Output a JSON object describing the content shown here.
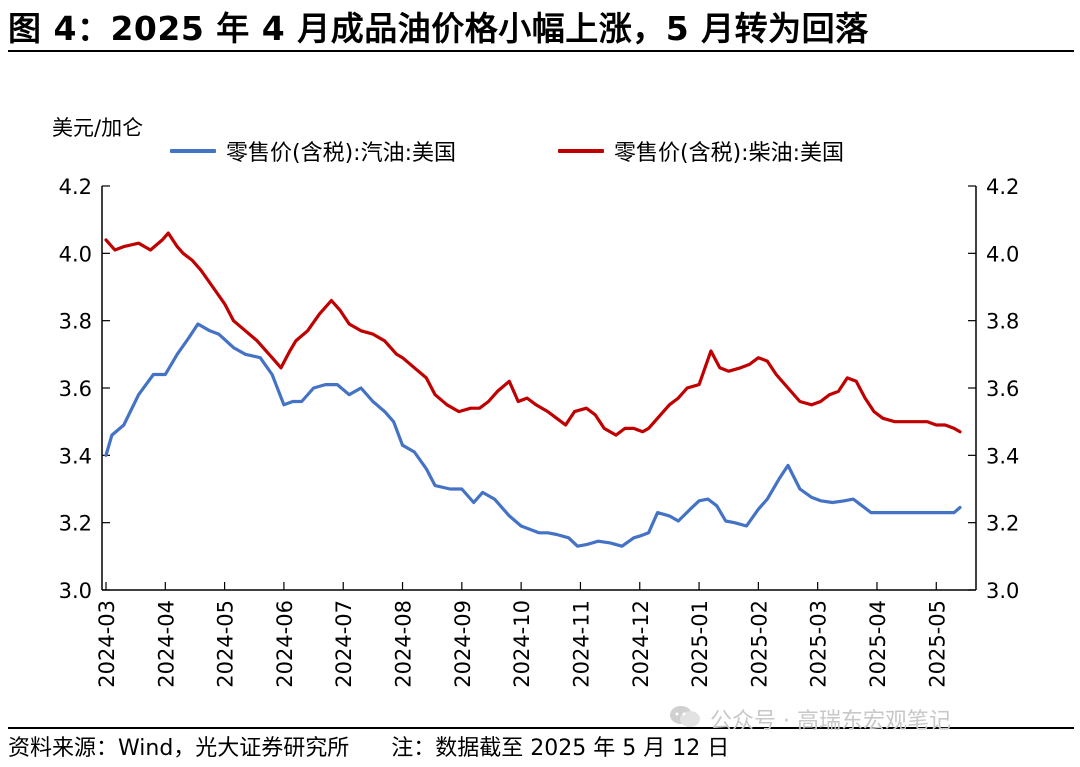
{
  "title": "图 4：2025 年 4 月成品油价格小幅上涨，5 月转为回落",
  "source": "资料来源：Wind，光大证券研究所      注：数据截至 2025 年 5 月 12 日",
  "watermark": "公众号 · 高瑞东宏观笔记",
  "watermark_icon": "wechat-icon",
  "chart_data": {
    "type": "line",
    "ylabel": "美元/加仑",
    "ylim": [
      3.0,
      4.2
    ],
    "yticks": [
      "3.0",
      "3.2",
      "3.4",
      "3.6",
      "3.8",
      "4.0",
      "4.2"
    ],
    "yticks_right": [
      "3.0",
      "3.2",
      "3.4",
      "3.6",
      "3.8",
      "4.0",
      "4.2"
    ],
    "x_labels": [
      "2024-03",
      "2024-04",
      "2024-05",
      "2024-06",
      "2024-07",
      "2024-08",
      "2024-09",
      "2024-10",
      "2024-11",
      "2024-12",
      "2025-01",
      "2025-02",
      "2025-03",
      "2025-04",
      "2025-05"
    ],
    "grid": false,
    "legend_position": "top",
    "series": [
      {
        "name": "零售价(含税):汽油:美国",
        "color": "#4472C4",
        "x": [
          0,
          0.1,
          0.3,
          0.55,
          0.8,
          1.0,
          1.2,
          1.4,
          1.55,
          1.75,
          1.9,
          2.15,
          2.35,
          2.6,
          2.8,
          3.0,
          3.15,
          3.3,
          3.5,
          3.7,
          3.9,
          4.1,
          4.3,
          4.5,
          4.7,
          4.85,
          5.0,
          5.2,
          5.4,
          5.55,
          5.8,
          6.0,
          6.2,
          6.35,
          6.55,
          6.8,
          7.0,
          7.15,
          7.3,
          7.45,
          7.6,
          7.8,
          7.95,
          8.1,
          8.3,
          8.5,
          8.7,
          8.9,
          9.0,
          9.15,
          9.3,
          9.5,
          9.65,
          9.85,
          10.0,
          10.15,
          10.3,
          10.45,
          10.6,
          10.8,
          11.0,
          11.15,
          11.35,
          11.5,
          11.7,
          11.9,
          12.05,
          12.25,
          12.45,
          12.6,
          12.75,
          12.9,
          13.0,
          13.1,
          13.2,
          13.3,
          13.45,
          13.6,
          13.75,
          13.85,
          14.0,
          14.15,
          14.3,
          14.4
        ],
        "values": [
          3.4,
          3.46,
          3.49,
          3.58,
          3.64,
          3.64,
          3.7,
          3.75,
          3.79,
          3.77,
          3.76,
          3.72,
          3.7,
          3.69,
          3.64,
          3.55,
          3.56,
          3.56,
          3.6,
          3.61,
          3.61,
          3.58,
          3.6,
          3.56,
          3.53,
          3.5,
          3.43,
          3.41,
          3.36,
          3.31,
          3.3,
          3.3,
          3.26,
          3.29,
          3.27,
          3.22,
          3.19,
          3.18,
          3.17,
          3.17,
          3.165,
          3.155,
          3.13,
          3.135,
          3.145,
          3.14,
          3.13,
          3.155,
          3.16,
          3.17,
          3.23,
          3.22,
          3.205,
          3.24,
          3.265,
          3.27,
          3.25,
          3.205,
          3.2,
          3.19,
          3.24,
          3.27,
          3.33,
          3.37,
          3.3,
          3.275,
          3.265,
          3.26,
          3.265,
          3.27,
          3.25,
          3.23,
          3.23,
          3.23,
          3.23,
          3.23,
          3.23,
          3.23,
          3.23,
          3.23,
          3.23,
          3.23,
          3.23,
          3.245
        ]
      },
      {
        "name": "零售价(含税):柴油:美国",
        "color": "#C00000",
        "x": [
          0,
          0.15,
          0.3,
          0.55,
          0.75,
          0.95,
          1.05,
          1.2,
          1.3,
          1.45,
          1.6,
          1.8,
          2.0,
          2.15,
          2.35,
          2.55,
          2.8,
          2.95,
          3.1,
          3.2,
          3.4,
          3.6,
          3.8,
          3.95,
          4.1,
          4.3,
          4.5,
          4.7,
          4.9,
          5.0,
          5.2,
          5.4,
          5.55,
          5.75,
          5.95,
          6.15,
          6.3,
          6.45,
          6.6,
          6.8,
          6.95,
          7.1,
          7.25,
          7.45,
          7.6,
          7.75,
          7.9,
          8.1,
          8.25,
          8.4,
          8.6,
          8.75,
          8.9,
          9.05,
          9.15,
          9.3,
          9.5,
          9.65,
          9.8,
          10.0,
          10.2,
          10.35,
          10.5,
          10.7,
          10.85,
          11.0,
          11.15,
          11.3,
          11.5,
          11.7,
          11.9,
          12.05,
          12.2,
          12.35,
          12.5,
          12.65,
          12.8,
          12.95,
          13.1,
          13.3,
          13.5,
          13.7,
          13.85,
          14.0,
          14.15,
          14.3,
          14.4
        ],
        "values": [
          4.04,
          4.01,
          4.02,
          4.03,
          4.01,
          4.04,
          4.06,
          4.02,
          4.0,
          3.98,
          3.95,
          3.9,
          3.85,
          3.8,
          3.77,
          3.74,
          3.69,
          3.66,
          3.71,
          3.74,
          3.77,
          3.82,
          3.86,
          3.83,
          3.79,
          3.77,
          3.76,
          3.74,
          3.7,
          3.69,
          3.66,
          3.63,
          3.58,
          3.55,
          3.53,
          3.54,
          3.54,
          3.56,
          3.59,
          3.62,
          3.56,
          3.57,
          3.55,
          3.53,
          3.51,
          3.49,
          3.53,
          3.54,
          3.52,
          3.48,
          3.46,
          3.48,
          3.48,
          3.47,
          3.48,
          3.51,
          3.55,
          3.57,
          3.6,
          3.61,
          3.71,
          3.66,
          3.65,
          3.66,
          3.67,
          3.69,
          3.68,
          3.64,
          3.6,
          3.56,
          3.55,
          3.56,
          3.58,
          3.59,
          3.63,
          3.62,
          3.57,
          3.53,
          3.51,
          3.5,
          3.5,
          3.5,
          3.5,
          3.49,
          3.49,
          3.48,
          3.47
        ]
      }
    ]
  }
}
